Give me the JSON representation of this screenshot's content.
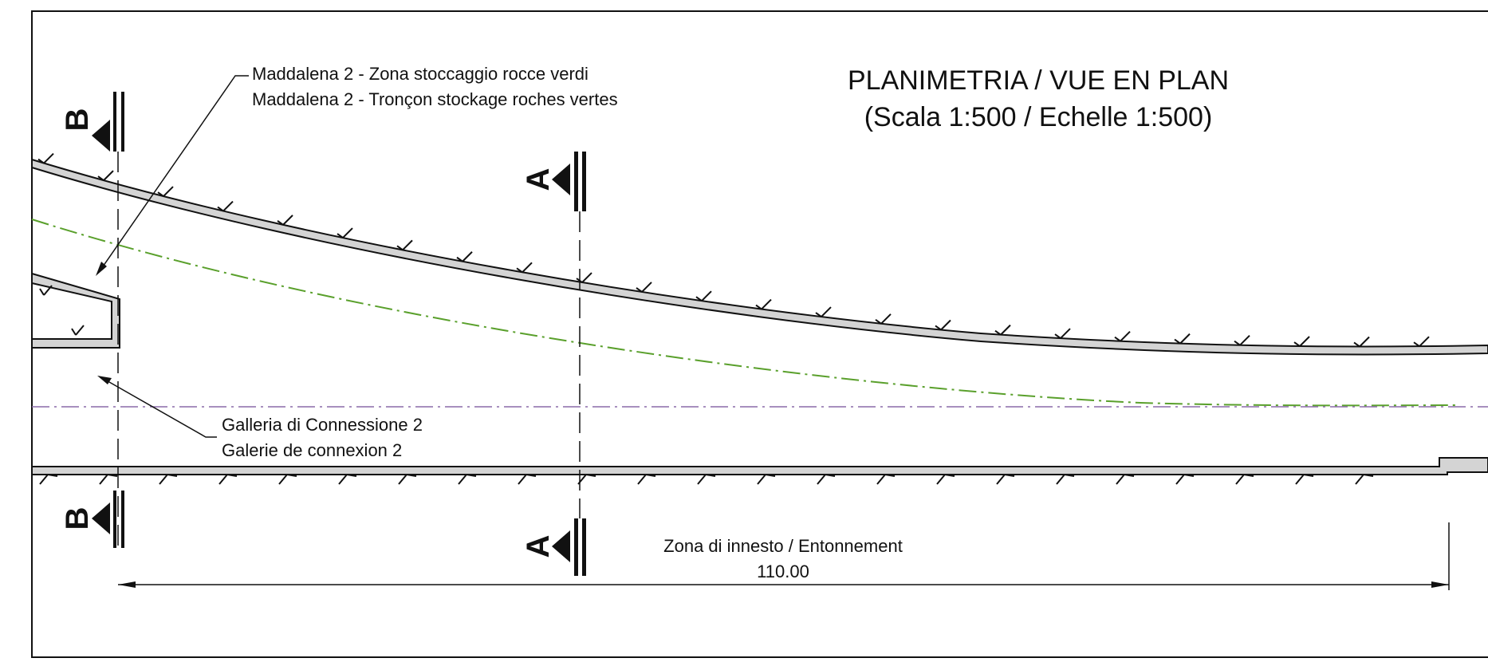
{
  "title": {
    "line1": "PLANIMETRIA / VUE EN PLAN",
    "line2": "(Scala 1:500 / Echelle 1:500)"
  },
  "labels": {
    "storage_it": "Maddalena 2 - Zona stoccaggio rocce verdi",
    "storage_fr": "Maddalena 2 - Tronçon stockage roches vertes",
    "gallery_it": "Galleria di Connessione 2",
    "gallery_fr": "Galerie de connexion 2",
    "zone": "Zona di innesto / Entonnement",
    "dimension": "110.00"
  },
  "sections": {
    "b": "B",
    "a": "A"
  },
  "colors": {
    "line": "#111111",
    "wall_fill": "#d4d4d4",
    "alignment": "#5aa02c",
    "axis": "#8a6aa8"
  }
}
